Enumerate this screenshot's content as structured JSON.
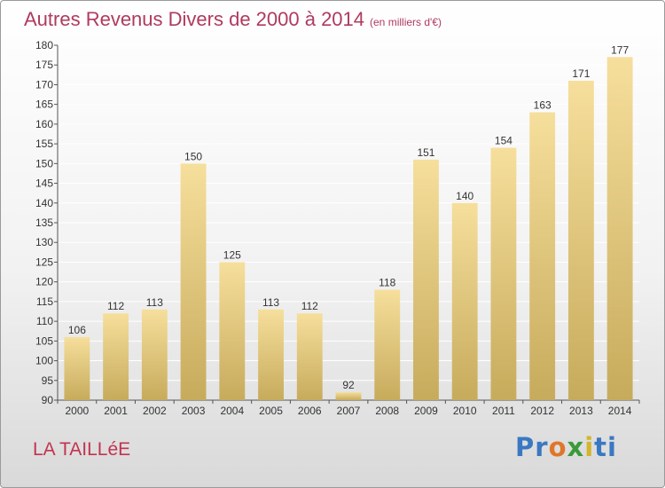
{
  "header": {
    "title": "Autres Revenus Divers de 2000 à 2014",
    "unit": "(en milliers d'€)"
  },
  "footer": {
    "place": "LA TAILLéE",
    "logo": "Proxiti"
  },
  "colors": {
    "title": "#b03a5e",
    "bar_top": "#f6df9c",
    "bar_bottom": "#c7ab5c",
    "grid": "#ffffff"
  },
  "chart_data": {
    "type": "bar",
    "title": "Autres Revenus Divers de 2000 à 2014",
    "xlabel": "",
    "ylabel": "",
    "categories": [
      "2000",
      "2001",
      "2002",
      "2003",
      "2004",
      "2005",
      "2006",
      "2007",
      "2008",
      "2009",
      "2010",
      "2011",
      "2012",
      "2013",
      "2014"
    ],
    "values": [
      106,
      112,
      113,
      150,
      125,
      113,
      112,
      92,
      118,
      151,
      140,
      154,
      163,
      171,
      177
    ],
    "ylim": [
      90,
      180
    ],
    "yticks": [
      90,
      95,
      100,
      105,
      110,
      115,
      120,
      125,
      130,
      135,
      140,
      145,
      150,
      155,
      160,
      165,
      170,
      175,
      180
    ],
    "grid": true,
    "legend": "none"
  }
}
